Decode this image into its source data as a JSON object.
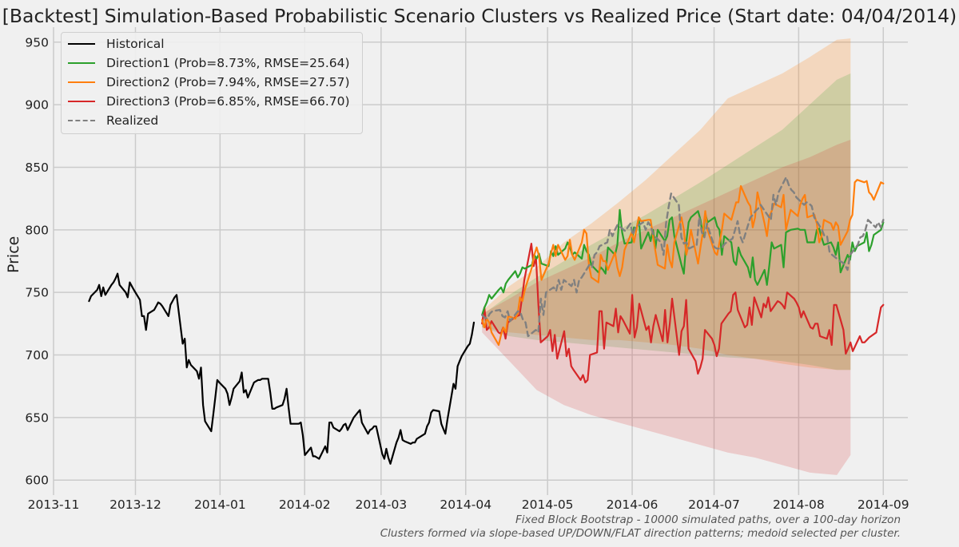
{
  "chart_data": {
    "type": "line",
    "title": "[Backtest] Simulation-Based Probabilistic Scenario Clusters vs Realized Price (Start date: 04/04/2014)",
    "xlabel": "",
    "ylabel": "Price",
    "x_range": [
      "2013-11-01",
      "2014-09-10"
    ],
    "ylim": [
      588,
      962
    ],
    "grid": true,
    "legend_position": "top-left",
    "x_ticks": [
      {
        "date": "2013-11-01",
        "label": "2013-11"
      },
      {
        "date": "2013-12-01",
        "label": "2013-12"
      },
      {
        "date": "2014-01-01",
        "label": "2014-01"
      },
      {
        "date": "2014-02-01",
        "label": "2014-02"
      },
      {
        "date": "2014-03-01",
        "label": "2014-03"
      },
      {
        "date": "2014-04-01",
        "label": "2014-04"
      },
      {
        "date": "2014-05-01",
        "label": "2014-05"
      },
      {
        "date": "2014-06-01",
        "label": "2014-06"
      },
      {
        "date": "2014-07-01",
        "label": "2014-07"
      },
      {
        "date": "2014-08-01",
        "label": "2014-08"
      },
      {
        "date": "2014-09-01",
        "label": "2014-09"
      }
    ],
    "y_ticks": [
      600,
      650,
      700,
      750,
      800,
      850,
      900,
      950
    ],
    "bands": [
      {
        "name": "Direction2 band",
        "color": "#ff7f0e",
        "opacity": 0.22,
        "upper": [
          [
            0,
            735
          ],
          [
            10,
            755
          ],
          [
            20,
            770
          ],
          [
            30,
            790
          ],
          [
            40,
            805
          ],
          [
            50,
            822
          ],
          [
            60,
            840
          ],
          [
            70,
            860
          ],
          [
            80,
            880
          ],
          [
            90,
            905
          ],
          [
            100,
            915
          ],
          [
            110,
            925
          ],
          [
            120,
            938
          ],
          [
            130,
            952
          ],
          [
            135,
            953
          ]
        ],
        "lower": [
          [
            0,
            722
          ],
          [
            10,
            718
          ],
          [
            20,
            716
          ],
          [
            30,
            714
          ],
          [
            40,
            712
          ],
          [
            50,
            712
          ],
          [
            60,
            710
          ],
          [
            70,
            708
          ],
          [
            80,
            705
          ],
          [
            90,
            700
          ],
          [
            100,
            697
          ],
          [
            110,
            693
          ],
          [
            120,
            690
          ],
          [
            130,
            688
          ],
          [
            135,
            688
          ]
        ]
      },
      {
        "name": "Direction1 band",
        "color": "#2ca02c",
        "opacity": 0.18,
        "upper": [
          [
            0,
            732
          ],
          [
            10,
            748
          ],
          [
            20,
            762
          ],
          [
            30,
            775
          ],
          [
            40,
            788
          ],
          [
            50,
            800
          ],
          [
            60,
            812
          ],
          [
            70,
            825
          ],
          [
            80,
            838
          ],
          [
            90,
            852
          ],
          [
            100,
            866
          ],
          [
            110,
            880
          ],
          [
            120,
            900
          ],
          [
            130,
            920
          ],
          [
            135,
            925
          ]
        ],
        "lower": [
          [
            0,
            722
          ],
          [
            10,
            715
          ],
          [
            20,
            712
          ],
          [
            30,
            710
          ],
          [
            40,
            708
          ],
          [
            50,
            706
          ],
          [
            60,
            704
          ],
          [
            70,
            702
          ],
          [
            80,
            700
          ],
          [
            90,
            698
          ],
          [
            100,
            697
          ],
          [
            110,
            695
          ],
          [
            120,
            692
          ],
          [
            130,
            688
          ],
          [
            135,
            688
          ]
        ]
      },
      {
        "name": "Direction3 band",
        "color": "#d62728",
        "opacity": 0.18,
        "upper": [
          [
            0,
            733
          ],
          [
            10,
            745
          ],
          [
            20,
            758
          ],
          [
            30,
            768
          ],
          [
            40,
            778
          ],
          [
            50,
            790
          ],
          [
            60,
            800
          ],
          [
            70,
            810
          ],
          [
            80,
            820
          ],
          [
            90,
            830
          ],
          [
            100,
            840
          ],
          [
            110,
            850
          ],
          [
            120,
            858
          ],
          [
            130,
            868
          ],
          [
            135,
            872
          ]
        ],
        "lower": [
          [
            0,
            718
          ],
          [
            10,
            695
          ],
          [
            20,
            672
          ],
          [
            30,
            660
          ],
          [
            40,
            652
          ],
          [
            50,
            646
          ],
          [
            60,
            640
          ],
          [
            70,
            634
          ],
          [
            80,
            628
          ],
          [
            90,
            622
          ],
          [
            100,
            618
          ],
          [
            110,
            612
          ],
          [
            120,
            606
          ],
          [
            130,
            604
          ],
          [
            135,
            620
          ]
        ]
      }
    ],
    "series": [
      {
        "name": "Historical",
        "legend": "Historical",
        "color": "#000000",
        "dash": false,
        "start": "2013-11-14",
        "values": [
          743,
          747,
          752,
          756,
          747,
          754,
          748,
          756,
          758,
          761,
          765,
          756,
          750,
          746,
          758,
          755,
          752,
          744,
          731,
          731,
          720,
          733,
          736,
          739,
          742,
          741,
          739,
          731,
          740,
          743,
          746,
          748,
          709,
          713,
          690,
          696,
          692,
          687,
          681,
          690,
          660,
          647,
          639,
          652,
          666,
          680,
          678,
          673,
          669,
          660,
          666,
          673,
          679,
          686,
          670,
          672,
          666,
          678,
          679,
          680,
          680,
          681,
          681,
          670,
          657,
          657,
          658,
          660,
          665,
          673,
          658,
          645,
          645,
          645,
          646,
          636,
          620,
          626,
          619,
          619,
          618,
          617,
          627,
          622,
          646,
          646,
          642,
          639,
          641,
          644,
          645,
          640,
          650,
          652,
          654,
          656,
          646,
          637,
          640,
          641,
          643,
          643,
          621,
          617,
          625,
          618,
          613,
          630,
          634,
          640,
          632,
          631,
          629,
          630,
          630,
          633,
          634,
          637,
          643,
          646,
          654,
          656,
          655,
          645,
          641,
          637,
          648,
          677,
          673,
          691,
          695,
          699,
          707,
          709,
          716,
          726
        ]
      },
      {
        "name": "Direction1",
        "legend": "Direction1 (Prob=8.73%, RMSE=25.64)",
        "color": "#2ca02c",
        "dash": false,
        "start": "2014-04-07",
        "values": [
          732,
          738,
          742,
          748,
          745,
          752,
          754,
          750,
          757,
          760,
          767,
          762,
          765,
          770,
          769,
          772,
          780,
          777,
          781,
          773,
          771,
          783,
          779,
          787,
          780,
          785,
          790,
          786,
          780,
          782,
          777,
          788,
          783,
          780,
          772,
          766,
          770,
          768,
          765,
          786,
          780,
          788,
          816,
          798,
          789,
          790,
          802,
          800,
          810,
          785,
          798,
          791,
          800,
          785,
          800,
          791,
          795,
          808,
          810,
          795,
          772,
          765,
          790,
          806,
          810,
          815,
          808,
          795,
          813,
          806,
          810,
          803,
          800,
          780,
          795,
          790,
          775,
          772,
          786,
          780,
          770,
          762,
          778,
          760,
          756,
          768,
          756,
          772,
          790,
          785,
          788,
          770,
          798,
          799,
          800,
          801,
          800,
          800,
          800,
          790,
          790,
          800,
          801,
          794,
          788,
          790,
          786,
          780,
          790,
          766,
          780,
          776,
          790,
          783,
          787,
          790,
          798,
          783,
          788,
          796,
          800,
          806
        ]
      },
      {
        "name": "Direction2",
        "legend": "Direction2 (Prob=7.94%, RMSE=27.57)",
        "color": "#ff7f0e",
        "dash": false,
        "start": "2014-04-07",
        "values": [
          728,
          722,
          729,
          726,
          718,
          708,
          716,
          722,
          718,
          731,
          729,
          733,
          746,
          743,
          752,
          770,
          780,
          786,
          779,
          760,
          773,
          781,
          788,
          779,
          788,
          776,
          779,
          792,
          780,
          776,
          790,
          800,
          797,
          772,
          762,
          758,
          780,
          775,
          775,
          768,
          782,
          770,
          763,
          770,
          784,
          798,
          790,
          800,
          810,
          807,
          808,
          808,
          795,
          783,
          772,
          769,
          788,
          776,
          770,
          790,
          810,
          800,
          780,
          788,
          800,
          773,
          786,
          798,
          815,
          800,
          782,
          780,
          790,
          800,
          813,
          808,
          815,
          822,
          822,
          835,
          822,
          819,
          802,
          810,
          830,
          805,
          795,
          811,
          815,
          821,
          818,
          828,
          800,
          808,
          816,
          811,
          820,
          825,
          828,
          810,
          812,
          805,
          790,
          795,
          808,
          805,
          800,
          806,
          803,
          788,
          799,
          808,
          812,
          838,
          840,
          838,
          839,
          830,
          828,
          824,
          838,
          837
        ]
      },
      {
        "name": "Direction3",
        "legend": "Direction3 (Prob=6.85%, RMSE=66.70)",
        "color": "#d62728",
        "dash": false,
        "start": "2014-04-07",
        "values": [
          725,
          738,
          720,
          722,
          727,
          718,
          717,
          722,
          713,
          726,
          730,
          731,
          732,
          745,
          760,
          789,
          771,
          778,
          740,
          710,
          715,
          720,
          703,
          716,
          697,
          719,
          699,
          705,
          691,
          688,
          680,
          684,
          678,
          680,
          700,
          702,
          735,
          735,
          705,
          726,
          723,
          737,
          718,
          731,
          728,
          717,
          748,
          714,
          722,
          741,
          720,
          723,
          710,
          723,
          732,
          711,
          736,
          710,
          725,
          745,
          700,
          719,
          723,
          744,
          705,
          695,
          685,
          690,
          697,
          720,
          713,
          708,
          699,
          705,
          725,
          733,
          735,
          748,
          750,
          736,
          722,
          724,
          738,
          724,
          746,
          730,
          741,
          738,
          746,
          735,
          743,
          742,
          740,
          737,
          750,
          745,
          742,
          738,
          730,
          735,
          722,
          721,
          725,
          725,
          715,
          713,
          720,
          708,
          740,
          740,
          720,
          701,
          705,
          710,
          703,
          715,
          710,
          710,
          712,
          714,
          718,
          728,
          738,
          740
        ]
      },
      {
        "name": "Realized",
        "legend": "Realized",
        "color": "#808080",
        "dash": true,
        "start": "2014-04-07",
        "values": [
          732,
          730,
          729,
          733,
          735,
          736,
          731,
          730,
          735,
          727,
          735,
          734,
          728,
          726,
          715,
          720,
          718,
          745,
          732,
          750,
          754,
          751,
          760,
          752,
          760,
          755,
          760,
          750,
          760,
          762,
          772,
          770,
          780,
          782,
          787,
          790,
          800,
          795,
          800,
          804,
          799,
          802,
          805,
          796,
          802,
          806,
          800,
          806,
          803,
          796,
          790,
          780,
          805,
          818,
          829,
          820,
          794,
          789,
          790,
          785,
          788,
          810,
          798,
          794,
          805,
          786,
          785,
          785,
          786,
          789,
          793,
          800,
          807,
          795,
          790,
          810,
          812,
          815,
          817,
          820,
          811,
          808,
          828,
          820,
          830,
          842,
          836,
          832,
          830,
          826,
          820,
          822,
          821,
          819,
          810,
          800,
          795,
          795,
          782,
          780,
          775,
          774,
          772,
          768,
          780,
          788,
          794,
          795,
          800,
          808,
          802,
          806,
          802,
          808
        ]
      }
    ]
  },
  "footnotes": [
    "Fixed Block Bootstrap - 10000 simulated paths, over a 100-day horizon",
    "Clusters formed via slope-based UP/DOWN/FLAT direction patterns; medoid selected per cluster."
  ]
}
